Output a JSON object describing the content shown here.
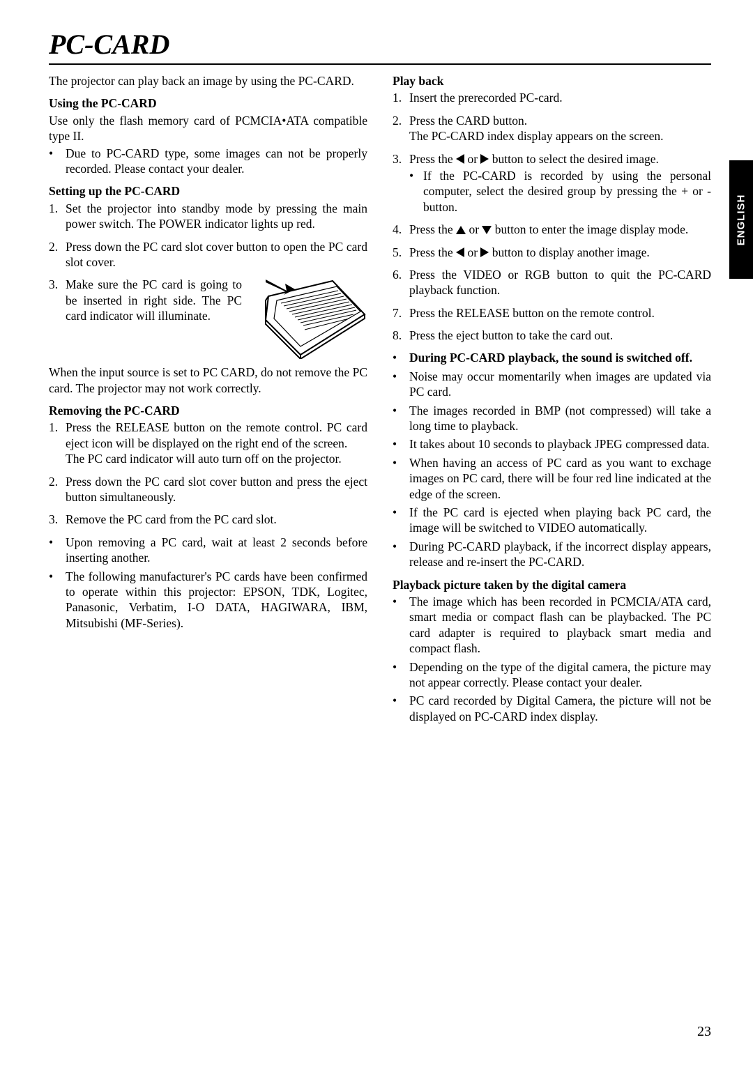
{
  "title": "PC-CARD",
  "intro": "The projector can play back an image by using the PC-CARD.",
  "sideTab": "ENGLISH",
  "pageNumber": "23",
  "left": {
    "usingHead": "Using the PC-CARD",
    "usingText": "Use only the flash memory card of PCMCIA•ATA compatible type II.",
    "usingBullet": "Due to PC-CARD type, some images can not be properly recorded.  Please contact your dealer.",
    "setupHead": "Setting up the PC-CARD",
    "setup": [
      "Set the projector into standby mode by pressing the main power switch. The POWER indicator lights up red.",
      "Press down the PC card slot cover button to open the PC card slot cover.",
      "Make sure the PC card is going to be inserted in right side.  The PC card indicator will illuminate."
    ],
    "setupNote": "When the input source is set to PC CARD, do not remove the PC card. The projector may not work correctly.",
    "removeHead": "Removing the PC-CARD",
    "remove": [
      "Press the RELEASE button on the remote control.  PC card eject icon will be displayed on the right end of the screen.\nThe PC card indicator will auto turn off on the projector.",
      "Press down the PC card slot cover button and press the eject button simultaneously.",
      "Remove the PC card from the PC card slot."
    ],
    "removeBullets": [
      "Upon removing a PC card, wait at least 2 seconds before inserting another.",
      "The following manufacturer's PC cards have been confirmed to operate within this projector: EPSON, TDK, Logitec, Panasonic, Verbatim, I-O DATA, HAGIWARA, IBM, Mitsubishi (MF-Series)."
    ]
  },
  "right": {
    "playHead": "Play back",
    "play": [
      {
        "n": "1.",
        "t": "Insert the prerecorded PC-card."
      },
      {
        "n": "2.",
        "t": "Press the CARD button.\nThe PC-CARD index display appears on the screen."
      },
      {
        "n": "3.",
        "tPre": "Press the ",
        "tMid": " or ",
        "tPost": " button to select the desired image.",
        "icons": [
          "left",
          "right"
        ],
        "sub": "If the PC-CARD is recorded by using the personal computer, select the desired group by pressing the + or - button."
      },
      {
        "n": "4.",
        "tPre": "Press the ",
        "tMid": " or ",
        "tPost": " button to enter the image display mode.",
        "icons": [
          "up",
          "down"
        ]
      },
      {
        "n": "5.",
        "tPre": "Press the ",
        "tMid": " or ",
        "tPost": " button to display another image.",
        "icons": [
          "left",
          "right"
        ]
      },
      {
        "n": "6.",
        "t": "Press the VIDEO or RGB button to quit the PC-CARD playback function."
      },
      {
        "n": "7.",
        "t": "Press the RELEASE button on the remote control."
      },
      {
        "n": "8.",
        "t": "Press the eject button to take the card out."
      }
    ],
    "notesHead": "During PC-CARD playback, the sound is switched off.",
    "notes": [
      "Noise may occur momentarily when images are updated via PC card.",
      "The images recorded in BMP (not compressed) will take a long time to playback.",
      "It takes about 10 seconds to playback JPEG compressed data.",
      "When having an access of PC card as you want to exchage images on PC card, there will be four red line indicated at the edge of the screen.",
      "If the PC card is ejected when playing back PC card, the image will be switched to VIDEO automatically.",
      "During PC-CARD playback, if the incorrect display appears, release and re-insert the PC-CARD."
    ],
    "digHead": "Playback picture taken by the digital camera",
    "digBullets": [
      "The image which has been recorded in PCMCIA/ATA card, smart media or compact flash can be playbacked.  The PC card adapter is required to playback smart media and compact flash.",
      "Depending on the type of the digital camera, the picture may not appear correctly.  Please contact your dealer.",
      "PC card recorded by Digital Camera, the picture will not be displayed on PC-CARD index display."
    ]
  },
  "illus": {
    "width": 170,
    "height": 118
  }
}
